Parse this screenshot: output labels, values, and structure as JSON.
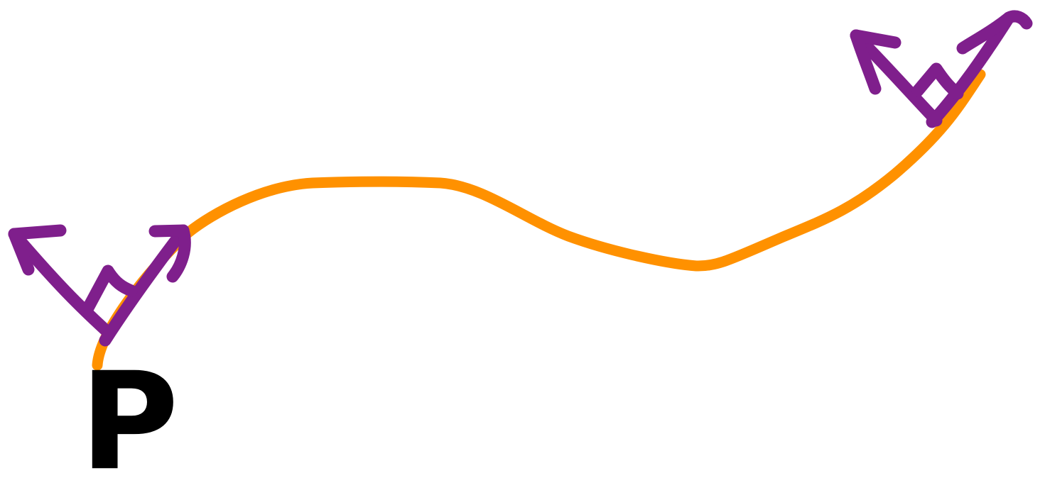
{
  "labels": {
    "point": "P"
  }
}
